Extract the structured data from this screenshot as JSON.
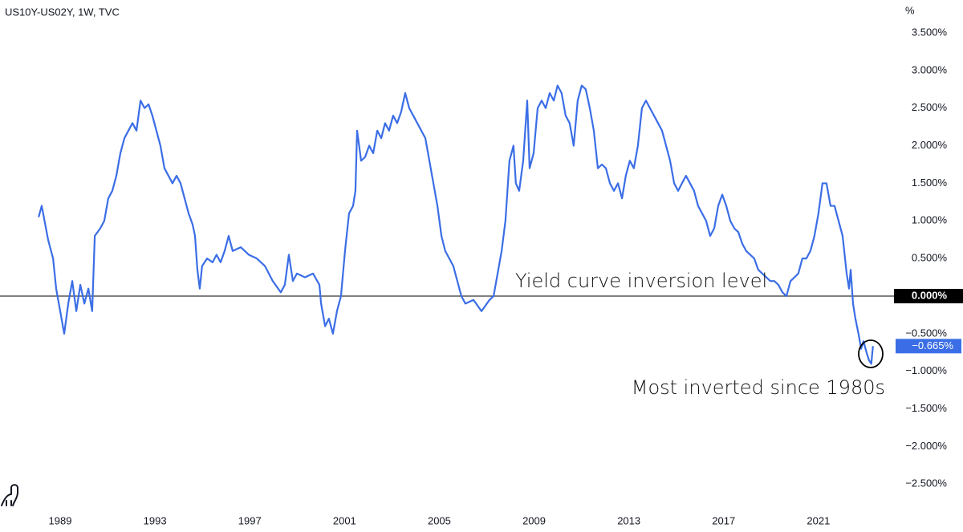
{
  "chart_data": {
    "type": "line",
    "title": "US10Y-US02Y, 1W, TVC",
    "y_unit": "%",
    "annotations": [
      "Yield curve inversion level",
      "Most inverted since 1980s"
    ],
    "reference_line": 0,
    "last_value": {
      "value": -0.665,
      "label": "−0.665%"
    },
    "xlim": [
      1986.46,
      2024.12
    ],
    "xticks": [
      1989,
      1993,
      1997,
      2001,
      2005,
      2009,
      2013,
      2017,
      2021
    ],
    "ylim": [
      -2.9,
      3.9
    ],
    "yticks": [
      {
        "value": 3.5,
        "label": "3.500%"
      },
      {
        "value": 3.0,
        "label": "3.000%"
      },
      {
        "value": 2.5,
        "label": "2.500%"
      },
      {
        "value": 2.0,
        "label": "2.000%"
      },
      {
        "value": 1.5,
        "label": "1.500%"
      },
      {
        "value": 1.0,
        "label": "1.000%"
      },
      {
        "value": 0.5,
        "label": "0.500%"
      },
      {
        "value": 0,
        "label": "0.000%"
      },
      {
        "value": -0.5,
        "label": "−0.500%"
      },
      {
        "value": -1.0,
        "label": "−1.000%"
      },
      {
        "value": -1.5,
        "label": "−1.500%"
      },
      {
        "value": -2.0,
        "label": "−2.000%"
      },
      {
        "value": -2.5,
        "label": "−2.500%"
      }
    ],
    "grid": false,
    "x": [
      1988.09,
      1988.22,
      1988.49,
      1988.7,
      1988.83,
      1989.0,
      1989.17,
      1989.34,
      1989.51,
      1989.68,
      1989.85,
      1990.02,
      1990.19,
      1990.35,
      1990.46,
      1990.69,
      1990.86,
      1991.03,
      1991.2,
      1991.37,
      1991.54,
      1991.71,
      1991.88,
      1992.05,
      1992.22,
      1992.39,
      1992.56,
      1992.73,
      1992.89,
      1993.06,
      1993.23,
      1993.4,
      1993.57,
      1993.74,
      1993.91,
      1994.08,
      1994.25,
      1994.42,
      1994.59,
      1994.69,
      1994.79,
      1994.89,
      1994.99,
      1995.2,
      1995.43,
      1995.6,
      1995.77,
      1995.94,
      1996.11,
      1996.28,
      1996.62,
      1996.96,
      1997.3,
      1997.64,
      1997.97,
      1998.31,
      1998.48,
      1998.65,
      1998.82,
      1998.99,
      1999.33,
      1999.67,
      1999.94,
      2000.01,
      2000.18,
      2000.34,
      2000.51,
      2000.68,
      2000.85,
      2001.02,
      2001.19,
      2001.36,
      2001.46,
      2001.53,
      2001.7,
      2001.87,
      2002.04,
      2002.21,
      2002.38,
      2002.55,
      2002.71,
      2002.88,
      2003.05,
      2003.22,
      2003.39,
      2003.56,
      2003.73,
      2003.9,
      2004.07,
      2004.24,
      2004.41,
      2004.58,
      2004.75,
      2004.92,
      2005.09,
      2005.25,
      2005.42,
      2005.59,
      2005.76,
      2005.93,
      2006.1,
      2006.44,
      2006.78,
      2007.12,
      2007.29,
      2007.46,
      2007.63,
      2007.79,
      2007.96,
      2008.13,
      2008.23,
      2008.37,
      2008.54,
      2008.71,
      2008.81,
      2008.98,
      2009.15,
      2009.32,
      2009.49,
      2009.66,
      2009.83,
      2009.99,
      2010.16,
      2010.33,
      2010.5,
      2010.67,
      2010.84,
      2011.01,
      2011.18,
      2011.35,
      2011.52,
      2011.69,
      2011.86,
      2012.03,
      2012.2,
      2012.37,
      2012.54,
      2012.71,
      2012.87,
      2013.04,
      2013.21,
      2013.38,
      2013.55,
      2013.72,
      2013.89,
      2014.06,
      2014.23,
      2014.4,
      2014.57,
      2014.74,
      2014.91,
      2015.08,
      2015.24,
      2015.41,
      2015.58,
      2015.75,
      2015.92,
      2016.09,
      2016.26,
      2016.43,
      2016.6,
      2016.77,
      2016.94,
      2017.11,
      2017.28,
      2017.45,
      2017.62,
      2017.78,
      2017.95,
      2018.12,
      2018.29,
      2018.46,
      2018.63,
      2018.8,
      2018.97,
      2019.14,
      2019.31,
      2019.48,
      2019.65,
      2019.82,
      2019.99,
      2020.15,
      2020.32,
      2020.49,
      2020.66,
      2020.83,
      2021.0,
      2021.17,
      2021.34,
      2021.51,
      2021.68,
      2021.85,
      2022.02,
      2022.19,
      2022.29,
      2022.36,
      2022.46,
      2022.56,
      2022.69,
      2022.8,
      2022.9,
      2023.03,
      2023.13,
      2023.23,
      2023.3
    ],
    "series": [
      {
        "name": "US10Y-US02Y",
        "color": "#3b6ee6",
        "values": [
          1.05,
          1.2,
          0.75,
          0.5,
          0.1,
          -0.2,
          -0.5,
          -0.1,
          0.2,
          -0.2,
          0.15,
          -0.1,
          0.1,
          -0.2,
          0.8,
          0.9,
          1.0,
          1.3,
          1.4,
          1.6,
          1.9,
          2.1,
          2.2,
          2.3,
          2.2,
          2.6,
          2.5,
          2.55,
          2.4,
          2.2,
          2.0,
          1.7,
          1.6,
          1.5,
          1.6,
          1.5,
          1.3,
          1.1,
          0.95,
          0.8,
          0.35,
          0.1,
          0.4,
          0.5,
          0.45,
          0.55,
          0.45,
          0.6,
          0.8,
          0.6,
          0.65,
          0.55,
          0.5,
          0.4,
          0.2,
          0.05,
          0.15,
          0.55,
          0.2,
          0.3,
          0.25,
          0.3,
          0.15,
          -0.1,
          -0.4,
          -0.3,
          -0.5,
          -0.2,
          0.0,
          0.6,
          1.1,
          1.2,
          1.4,
          2.2,
          1.8,
          1.85,
          2.0,
          1.9,
          2.2,
          2.1,
          2.3,
          2.2,
          2.4,
          2.3,
          2.45,
          2.7,
          2.5,
          2.4,
          2.3,
          2.2,
          2.1,
          1.8,
          1.5,
          1.2,
          0.8,
          0.6,
          0.5,
          0.4,
          0.2,
          0.0,
          -0.1,
          -0.05,
          -0.2,
          -0.05,
          0.0,
          0.3,
          0.6,
          1.0,
          1.8,
          2.0,
          1.5,
          1.4,
          1.8,
          2.6,
          1.7,
          1.9,
          2.5,
          2.6,
          2.5,
          2.7,
          2.6,
          2.8,
          2.7,
          2.4,
          2.3,
          2.0,
          2.6,
          2.8,
          2.75,
          2.5,
          2.2,
          1.7,
          1.75,
          1.7,
          1.5,
          1.4,
          1.5,
          1.3,
          1.6,
          1.8,
          1.7,
          2.0,
          2.5,
          2.6,
          2.5,
          2.4,
          2.3,
          2.2,
          2.0,
          1.8,
          1.5,
          1.4,
          1.5,
          1.6,
          1.5,
          1.4,
          1.2,
          1.1,
          1.0,
          0.8,
          0.9,
          1.2,
          1.35,
          1.2,
          1.0,
          0.9,
          0.85,
          0.7,
          0.6,
          0.55,
          0.5,
          0.35,
          0.3,
          0.25,
          0.2,
          0.2,
          0.15,
          0.05,
          0.0,
          0.2,
          0.25,
          0.3,
          0.5,
          0.5,
          0.6,
          0.8,
          1.1,
          1.5,
          1.5,
          1.2,
          1.2,
          1.0,
          0.8,
          0.3,
          0.1,
          0.35,
          -0.1,
          -0.3,
          -0.5,
          -0.7,
          -0.6,
          -0.75,
          -0.85,
          -0.9,
          -0.665
        ]
      }
    ]
  }
}
